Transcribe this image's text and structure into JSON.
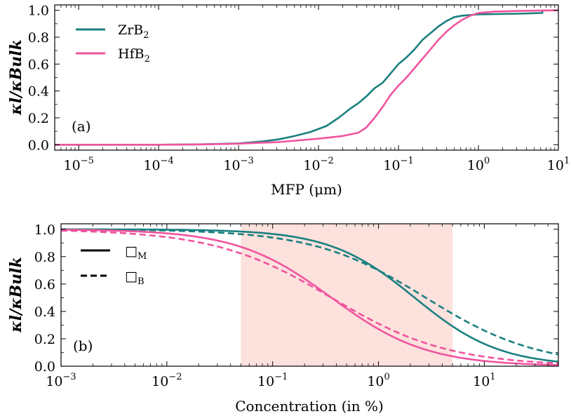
{
  "colors": {
    "zrb2": "#1a8080",
    "hfb2": "#f0549e",
    "shade": "#fde1dd"
  },
  "chart_data": [
    {
      "type": "line",
      "panel": "(a)",
      "xscale": "log",
      "xlim_exp": [
        -5.3,
        1.0
      ],
      "ylim": [
        -0.04,
        1.04
      ],
      "xlabel": "MFP (μm)",
      "ylabel": "κl/κBulk",
      "xticks_exp": [
        -5,
        -4,
        -3,
        -2,
        -1,
        0,
        1
      ],
      "xtick_labels": [
        "10",
        "10",
        "10",
        "10",
        "10",
        "10",
        "10"
      ],
      "xtick_sup": [
        "−5",
        "−4",
        "−3",
        "−2",
        "−1",
        "0",
        "1"
      ],
      "yticks": [
        "0.0",
        "0.2",
        "0.4",
        "0.6",
        "0.8",
        "1.0"
      ],
      "legend": [
        {
          "base": "ZrB",
          "sub": "2",
          "color": "#1a8080"
        },
        {
          "base": "HfB",
          "sub": "2",
          "color": "#f0549e"
        }
      ],
      "series": [
        {
          "name": "ZrB2",
          "color": "#1a8080",
          "points": [
            [
              -5.3,
              0.0
            ],
            [
              -4.0,
              0.0
            ],
            [
              -3.5,
              0.003
            ],
            [
              -3.0,
              0.01
            ],
            [
              -2.7,
              0.025
            ],
            [
              -2.5,
              0.04
            ],
            [
              -2.3,
              0.065
            ],
            [
              -2.1,
              0.095
            ],
            [
              -1.9,
              0.14
            ],
            [
              -1.75,
              0.2
            ],
            [
              -1.6,
              0.27
            ],
            [
              -1.5,
              0.31
            ],
            [
              -1.4,
              0.36
            ],
            [
              -1.3,
              0.42
            ],
            [
              -1.2,
              0.46
            ],
            [
              -1.1,
              0.53
            ],
            [
              -1.0,
              0.6
            ],
            [
              -0.9,
              0.65
            ],
            [
              -0.8,
              0.71
            ],
            [
              -0.7,
              0.78
            ],
            [
              -0.6,
              0.83
            ],
            [
              -0.5,
              0.88
            ],
            [
              -0.4,
              0.92
            ],
            [
              -0.3,
              0.95
            ],
            [
              -0.2,
              0.96
            ],
            [
              0.0,
              0.97
            ],
            [
              0.5,
              0.975
            ],
            [
              0.8,
              0.98
            ],
            [
              0.8,
              1.0
            ]
          ]
        },
        {
          "name": "HfB2",
          "color": "#f0549e",
          "points": [
            [
              -5.3,
              0.0
            ],
            [
              -4.0,
              0.0
            ],
            [
              -3.5,
              0.002
            ],
            [
              -3.0,
              0.008
            ],
            [
              -2.5,
              0.02
            ],
            [
              -2.0,
              0.045
            ],
            [
              -1.7,
              0.065
            ],
            [
              -1.5,
              0.09
            ],
            [
              -1.4,
              0.13
            ],
            [
              -1.3,
              0.2
            ],
            [
              -1.2,
              0.28
            ],
            [
              -1.1,
              0.37
            ],
            [
              -1.0,
              0.44
            ],
            [
              -0.9,
              0.5
            ],
            [
              -0.8,
              0.57
            ],
            [
              -0.7,
              0.64
            ],
            [
              -0.6,
              0.71
            ],
            [
              -0.5,
              0.78
            ],
            [
              -0.4,
              0.84
            ],
            [
              -0.3,
              0.89
            ],
            [
              -0.2,
              0.93
            ],
            [
              -0.1,
              0.96
            ],
            [
              0.0,
              0.98
            ],
            [
              0.2,
              0.99
            ],
            [
              0.5,
              0.995
            ],
            [
              1.0,
              1.0
            ]
          ]
        }
      ]
    },
    {
      "type": "line",
      "panel": "(b)",
      "xscale": "log",
      "xlim_exp": [
        -3.0,
        1.7
      ],
      "ylim": [
        0.0,
        1.04
      ],
      "xlabel": "Concentration (in %)",
      "ylabel": "κl/κBulk",
      "xticks_exp": [
        -3,
        -2,
        -1,
        0,
        1
      ],
      "xtick_labels": [
        "10",
        "10",
        "10",
        "10",
        "10"
      ],
      "xtick_sup": [
        "−3",
        "−2",
        "−1",
        "0",
        "1"
      ],
      "yticks": [
        "0.0",
        "0.2",
        "0.4",
        "0.6",
        "0.8",
        "1.0"
      ],
      "shaded_region_exp": [
        -1.3,
        0.7
      ],
      "legend": [
        {
          "style": "solid",
          "glyph": "□",
          "sub": "M"
        },
        {
          "style": "dashed",
          "glyph": "□",
          "sub": "B"
        }
      ],
      "series": [
        {
          "name": "ZrB2 M",
          "color": "#1a8080",
          "dash": false,
          "c": 2.2,
          "n": 1.08
        },
        {
          "name": "ZrB2 B",
          "color": "#1a8080",
          "dash": true,
          "c": 2.8,
          "n": 0.82
        },
        {
          "name": "HfB2 M",
          "color": "#f0549e",
          "dash": false,
          "c": 0.36,
          "n": 0.97
        },
        {
          "name": "HfB2 B",
          "color": "#f0549e",
          "dash": true,
          "c": 0.36,
          "n": 0.78
        }
      ]
    }
  ]
}
